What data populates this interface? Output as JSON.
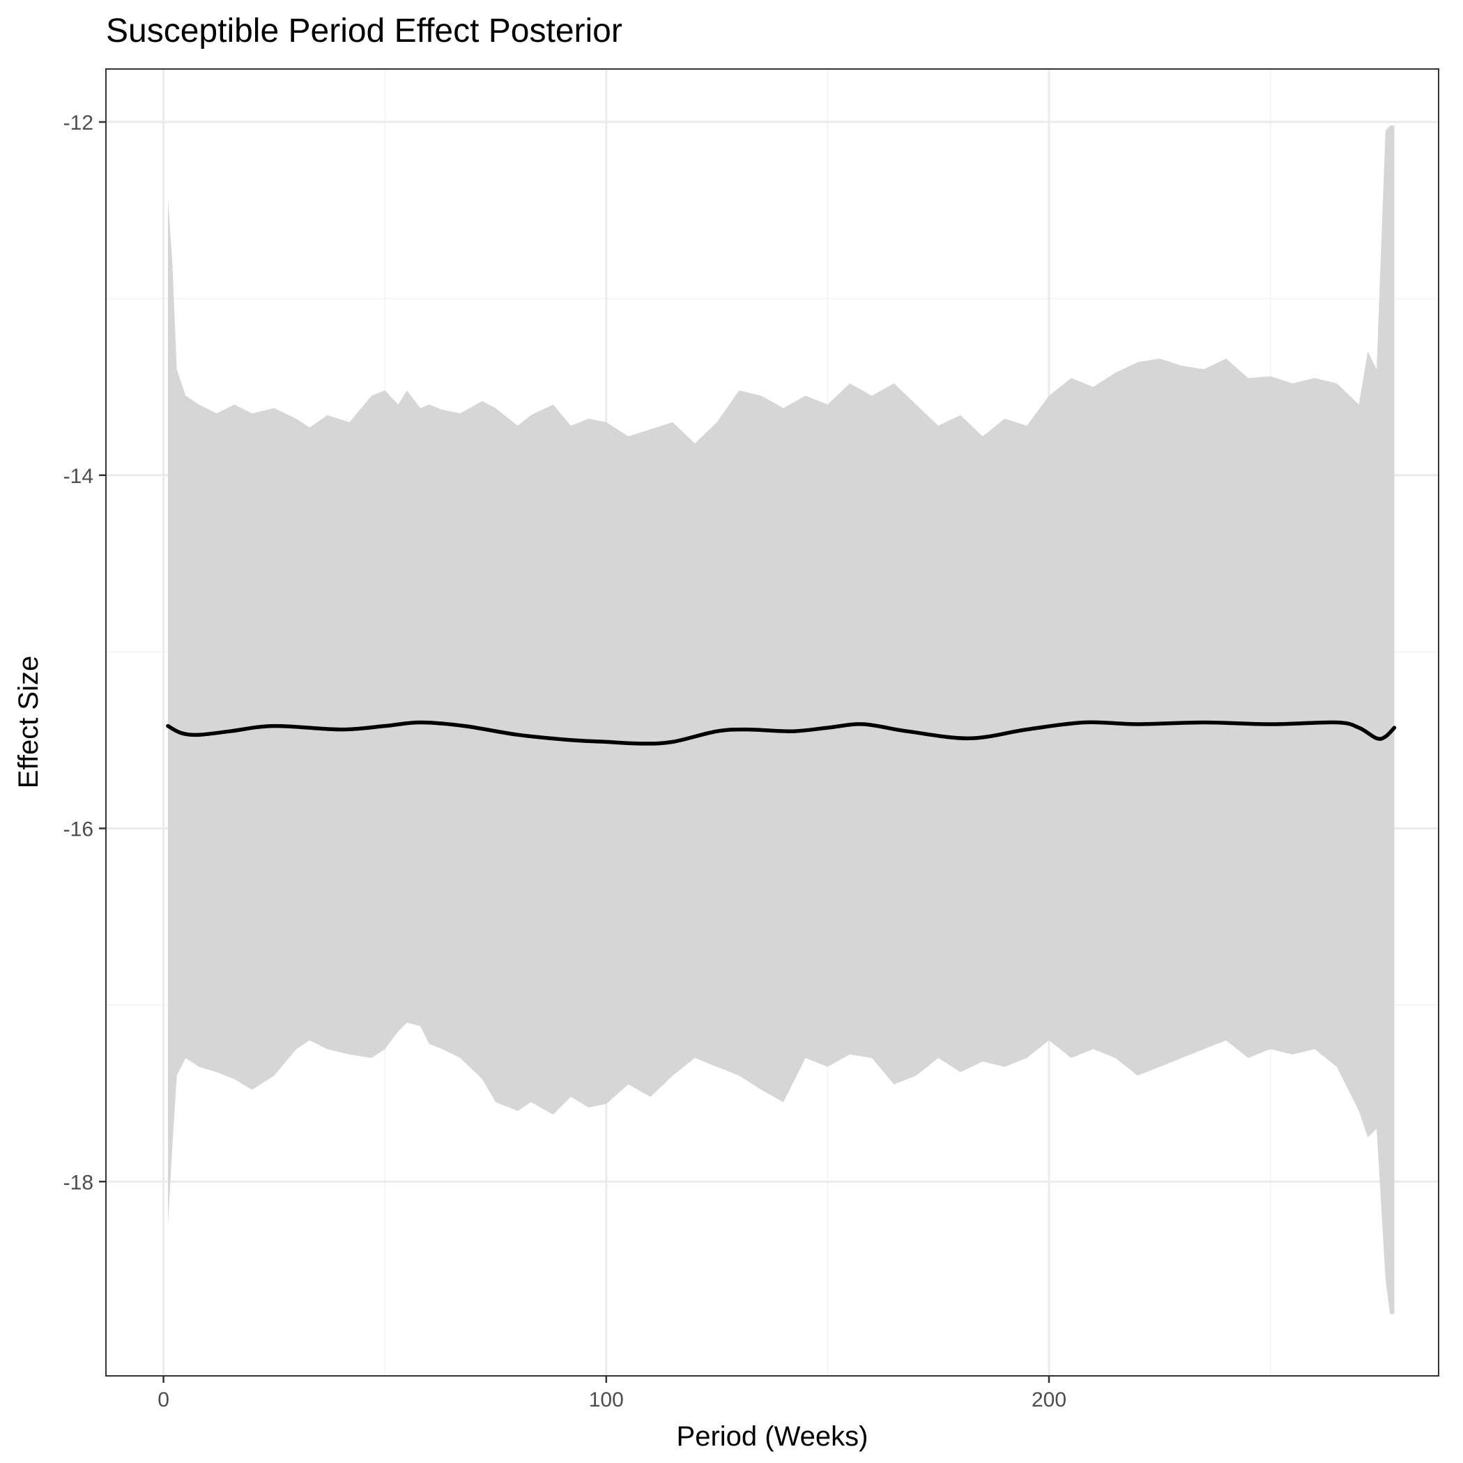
{
  "chart_data": {
    "type": "line",
    "title": "Susceptible Period Effect Posterior",
    "xlabel": "Period (Weeks)",
    "ylabel": "Effect Size",
    "xlim": [
      -13,
      288
    ],
    "ylim": [
      -19.1,
      -11.7
    ],
    "x_ticks": [
      0,
      100,
      200
    ],
    "x_tick_labels": [
      "0",
      "100",
      "200"
    ],
    "y_ticks": [
      -12,
      -14,
      -16,
      -18
    ],
    "y_tick_labels": [
      "-12",
      "-14",
      "-16",
      "-18"
    ],
    "grid": true,
    "legend": "none",
    "colors": {
      "line": "#000000",
      "ribbon": "#d6d6d6",
      "grid_major": "#ebebeb",
      "grid_minor": "#f2f2f2",
      "border": "#333333"
    },
    "series": [
      {
        "values": [
          {
            "x": 1,
            "y": -15.42
          },
          {
            "x": 4,
            "y": -15.46
          },
          {
            "x": 8,
            "y": -15.47
          },
          {
            "x": 15,
            "y": -15.45
          },
          {
            "x": 25,
            "y": -15.42
          },
          {
            "x": 40,
            "y": -15.44
          },
          {
            "x": 50,
            "y": -15.42
          },
          {
            "x": 58,
            "y": -15.4
          },
          {
            "x": 68,
            "y": -15.42
          },
          {
            "x": 80,
            "y": -15.47
          },
          {
            "x": 92,
            "y": -15.5
          },
          {
            "x": 100,
            "y": -15.51
          },
          {
            "x": 108,
            "y": -15.52
          },
          {
            "x": 115,
            "y": -15.51
          },
          {
            "x": 125,
            "y": -15.45
          },
          {
            "x": 132,
            "y": -15.44
          },
          {
            "x": 142,
            "y": -15.45
          },
          {
            "x": 150,
            "y": -15.43
          },
          {
            "x": 158,
            "y": -15.41
          },
          {
            "x": 168,
            "y": -15.45
          },
          {
            "x": 182,
            "y": -15.49
          },
          {
            "x": 195,
            "y": -15.44
          },
          {
            "x": 208,
            "y": -15.4
          },
          {
            "x": 220,
            "y": -15.41
          },
          {
            "x": 235,
            "y": -15.4
          },
          {
            "x": 250,
            "y": -15.41
          },
          {
            "x": 265,
            "y": -15.4
          },
          {
            "x": 270,
            "y": -15.43
          },
          {
            "x": 274,
            "y": -15.49
          },
          {
            "x": 276,
            "y": -15.48
          },
          {
            "x": 278,
            "y": -15.43
          }
        ]
      }
    ],
    "ribbon": {
      "x": [
        1,
        2,
        3,
        5,
        8,
        12,
        16,
        20,
        25,
        30,
        33,
        37,
        42,
        47,
        50,
        53,
        55,
        58,
        60,
        63,
        67,
        72,
        75,
        80,
        83,
        88,
        92,
        96,
        100,
        105,
        110,
        115,
        120,
        125,
        130,
        135,
        140,
        145,
        150,
        155,
        160,
        165,
        170,
        175,
        180,
        185,
        190,
        195,
        200,
        205,
        210,
        215,
        220,
        225,
        230,
        235,
        240,
        245,
        250,
        255,
        260,
        265,
        270,
        272,
        274,
        276,
        277,
        278
      ],
      "upper": [
        -12.43,
        -12.8,
        -13.4,
        -13.55,
        -13.6,
        -13.65,
        -13.6,
        -13.65,
        -13.62,
        -13.68,
        -13.73,
        -13.66,
        -13.7,
        -13.55,
        -13.52,
        -13.6,
        -13.52,
        -13.62,
        -13.6,
        -13.63,
        -13.65,
        -13.58,
        -13.62,
        -13.72,
        -13.66,
        -13.6,
        -13.72,
        -13.68,
        -13.7,
        -13.78,
        -13.74,
        -13.7,
        -13.82,
        -13.7,
        -13.52,
        -13.55,
        -13.62,
        -13.55,
        -13.6,
        -13.48,
        -13.55,
        -13.48,
        -13.6,
        -13.72,
        -13.66,
        -13.78,
        -13.68,
        -13.72,
        -13.55,
        -13.45,
        -13.5,
        -13.42,
        -13.36,
        -13.34,
        -13.38,
        -13.4,
        -13.34,
        -13.45,
        -13.44,
        -13.48,
        -13.45,
        -13.48,
        -13.6,
        -13.3,
        -13.4,
        -12.05,
        -12.02,
        -12.02
      ],
      "lower": [
        -18.25,
        -17.8,
        -17.4,
        -17.3,
        -17.35,
        -17.38,
        -17.42,
        -17.48,
        -17.4,
        -17.25,
        -17.2,
        -17.25,
        -17.28,
        -17.3,
        -17.25,
        -17.15,
        -17.1,
        -17.12,
        -17.22,
        -17.25,
        -17.3,
        -17.42,
        -17.55,
        -17.6,
        -17.55,
        -17.62,
        -17.52,
        -17.58,
        -17.56,
        -17.45,
        -17.52,
        -17.4,
        -17.3,
        -17.35,
        -17.4,
        -17.48,
        -17.55,
        -17.3,
        -17.35,
        -17.28,
        -17.3,
        -17.45,
        -17.4,
        -17.3,
        -17.38,
        -17.32,
        -17.35,
        -17.3,
        -17.2,
        -17.3,
        -17.25,
        -17.3,
        -17.4,
        -17.35,
        -17.3,
        -17.25,
        -17.2,
        -17.3,
        -17.25,
        -17.28,
        -17.25,
        -17.35,
        -17.6,
        -17.75,
        -17.7,
        -18.55,
        -18.75,
        -18.75
      ]
    }
  }
}
